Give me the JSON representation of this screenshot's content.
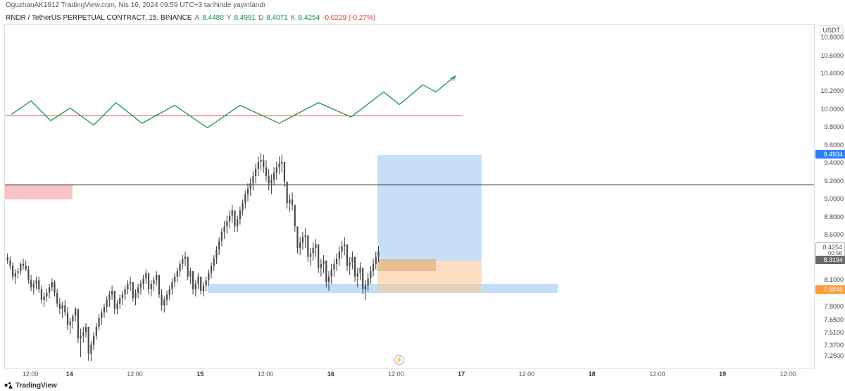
{
  "top_caption": "OguzhanAK1912 TradingView.com, Nis 16, 2024 09:59 UTC+3 tarihinde yayınlandı",
  "header": {
    "ticker": "RNDR / TetherUS PERPETUAL CONTRACT, 15, BINANCE",
    "o_label": "A",
    "o_val": "8.4480",
    "h_label": "Y",
    "h_val": "8.4991",
    "l_label": "D",
    "l_val": "8.4071",
    "c_label": "K",
    "c_val": "8.4254",
    "chg": "-0.0229 (-0.27%)"
  },
  "y_axis": {
    "unit": "USDT",
    "min": 7.1,
    "max": 10.95,
    "ticks": [
      7.25,
      7.37,
      7.51,
      7.65,
      7.8,
      8.1,
      8.6,
      8.8,
      9.0,
      9.2,
      9.4,
      9.6,
      9.8,
      10.0,
      10.2,
      10.4,
      10.6,
      10.8
    ],
    "tick_color": "#444444",
    "badges": [
      {
        "text": "8.4254",
        "sub": "00:56",
        "color": "#555555",
        "bg": "#ffffff",
        "border": "#bbbbbb",
        "price": 8.4254
      },
      {
        "text": "8.3194",
        "bg": "#6a6a6a",
        "color": "#ffffff",
        "price": 8.3194
      },
      {
        "text": "9.4934",
        "bg": "#2a7fff",
        "color": "#ffffff",
        "price": 9.4934
      },
      {
        "text": "7.9848",
        "bg": "#ff9a3a",
        "color": "#ffffff",
        "price": 7.9848
      }
    ]
  },
  "x_axis": {
    "t_min": 13.5,
    "t_max": 19.7,
    "ticks": [
      {
        "t": 13.7,
        "label": "12:00"
      },
      {
        "t": 14.0,
        "label": "14",
        "bold": true
      },
      {
        "t": 14.5,
        "label": "12:00"
      },
      {
        "t": 15.0,
        "label": "15",
        "bold": true
      },
      {
        "t": 15.5,
        "label": "12:00"
      },
      {
        "t": 16.0,
        "label": "16",
        "bold": true
      },
      {
        "t": 16.5,
        "label": "12:00"
      },
      {
        "t": 17.0,
        "label": "17",
        "bold": true
      },
      {
        "t": 17.5,
        "label": "12:00"
      },
      {
        "t": 18.0,
        "label": "18",
        "bold": true
      },
      {
        "t": 18.5,
        "label": "12:00"
      },
      {
        "t": 19.0,
        "label": "19",
        "bold": true
      },
      {
        "t": 19.5,
        "label": "12:00"
      }
    ]
  },
  "overlays": {
    "pink_rect": {
      "t0": 13.5,
      "t1": 14.02,
      "p0": 9.0,
      "p1": 9.17,
      "fill": "#f7b0b6",
      "opacity": 0.75
    },
    "long_box": {
      "t0": 16.35,
      "t1": 17.15,
      "p0": 8.32,
      "p1": 9.5,
      "fill": "#9cc2f0",
      "opacity": 0.55
    },
    "short_box": {
      "t0": 16.35,
      "t1": 17.15,
      "p0": 7.96,
      "p1": 8.32,
      "fill": "#f6c999",
      "opacity": 0.6
    },
    "orange_inner": {
      "t0": 16.35,
      "t1": 16.8,
      "p0": 8.2,
      "p1": 8.33,
      "fill": "#d8a26e",
      "opacity": 0.55
    },
    "blue_band": {
      "t0": 15.05,
      "t1": 17.73,
      "p0": 7.96,
      "p1": 8.06,
      "fill": "#a9cdf5",
      "opacity": 0.7
    },
    "black_hline": {
      "p": 9.17,
      "color": "#0a0a0a",
      "width": 1
    },
    "red_hline": {
      "p": 9.94,
      "t1": 17.0,
      "color": "#e04a4a",
      "width": 1
    }
  },
  "projection_curve": {
    "stroke": "#2c9a5b",
    "width": 1.4,
    "points": [
      [
        13.55,
        9.95
      ],
      [
        13.7,
        10.1
      ],
      [
        13.85,
        9.88
      ],
      [
        14.0,
        10.02
      ],
      [
        14.18,
        9.83
      ],
      [
        14.35,
        10.08
      ],
      [
        14.55,
        9.85
      ],
      [
        14.8,
        10.05
      ],
      [
        15.05,
        9.8
      ],
      [
        15.3,
        10.05
      ],
      [
        15.6,
        9.85
      ],
      [
        15.9,
        10.08
      ],
      [
        16.15,
        9.92
      ],
      [
        16.4,
        10.2
      ],
      [
        16.52,
        10.06
      ],
      [
        16.7,
        10.28
      ],
      [
        16.8,
        10.2
      ],
      [
        16.95,
        10.38
      ]
    ],
    "arrow_at": [
      16.95,
      10.38
    ]
  },
  "candles": {
    "up_color": "#4a4a4a",
    "down_color": "#4a4a4a",
    "wick_color": "#3a3a3a",
    "body_width": 2.2,
    "data": [
      [
        13.52,
        8.36,
        8.4,
        8.28,
        8.32
      ],
      [
        13.54,
        8.32,
        8.36,
        8.22,
        8.26
      ],
      [
        13.56,
        8.26,
        8.3,
        8.1,
        8.14
      ],
      [
        13.58,
        8.14,
        8.22,
        8.06,
        8.18
      ],
      [
        13.6,
        8.18,
        8.24,
        8.12,
        8.2
      ],
      [
        13.62,
        8.2,
        8.3,
        8.16,
        8.28
      ],
      [
        13.64,
        8.28,
        8.34,
        8.22,
        8.26
      ],
      [
        13.66,
        8.26,
        8.32,
        8.2,
        8.22
      ],
      [
        13.68,
        8.22,
        8.26,
        8.06,
        8.1
      ],
      [
        13.7,
        8.1,
        8.16,
        7.98,
        8.02
      ],
      [
        13.72,
        8.02,
        8.1,
        7.94,
        8.06
      ],
      [
        13.74,
        8.06,
        8.14,
        8.0,
        8.1
      ],
      [
        13.76,
        8.1,
        8.14,
        7.96,
        8.0
      ],
      [
        13.78,
        8.0,
        8.04,
        7.84,
        7.88
      ],
      [
        13.8,
        7.88,
        7.96,
        7.8,
        7.92
      ],
      [
        13.82,
        7.92,
        8.0,
        7.86,
        7.96
      ],
      [
        13.84,
        7.96,
        8.06,
        7.9,
        8.02
      ],
      [
        13.86,
        8.02,
        8.12,
        7.98,
        8.08
      ],
      [
        13.88,
        8.08,
        8.1,
        7.92,
        7.96
      ],
      [
        13.9,
        7.96,
        8.0,
        7.8,
        7.84
      ],
      [
        13.92,
        7.84,
        7.9,
        7.72,
        7.78
      ],
      [
        13.94,
        7.78,
        7.86,
        7.68,
        7.82
      ],
      [
        13.96,
        7.82,
        7.88,
        7.7,
        7.74
      ],
      [
        13.98,
        7.74,
        7.8,
        7.54,
        7.6
      ],
      [
        14.0,
        7.6,
        7.68,
        7.5,
        7.64
      ],
      [
        14.02,
        7.64,
        7.72,
        7.56,
        7.7
      ],
      [
        14.04,
        7.7,
        7.8,
        7.64,
        7.78
      ],
      [
        14.06,
        7.78,
        7.72,
        7.4,
        7.45
      ],
      [
        14.08,
        7.45,
        7.56,
        7.24,
        7.48
      ],
      [
        14.1,
        7.48,
        7.58,
        7.4,
        7.52
      ],
      [
        14.12,
        7.52,
        7.62,
        7.46,
        7.58
      ],
      [
        14.14,
        7.58,
        7.5,
        7.2,
        7.28
      ],
      [
        14.16,
        7.28,
        7.42,
        7.2,
        7.38
      ],
      [
        14.18,
        7.38,
        7.52,
        7.32,
        7.48
      ],
      [
        14.2,
        7.48,
        7.62,
        7.44,
        7.58
      ],
      [
        14.22,
        7.58,
        7.72,
        7.54,
        7.68
      ],
      [
        14.24,
        7.68,
        7.78,
        7.6,
        7.74
      ],
      [
        14.26,
        7.74,
        7.84,
        7.68,
        7.8
      ],
      [
        14.28,
        7.8,
        7.92,
        7.74,
        7.88
      ],
      [
        14.3,
        7.88,
        7.98,
        7.8,
        7.94
      ],
      [
        14.32,
        7.94,
        8.04,
        7.88,
        7.98
      ],
      [
        14.34,
        7.98,
        7.9,
        7.72,
        7.78
      ],
      [
        14.36,
        7.78,
        7.88,
        7.72,
        7.84
      ],
      [
        14.38,
        7.84,
        7.94,
        7.78,
        7.9
      ],
      [
        14.4,
        7.9,
        7.98,
        7.82,
        7.94
      ],
      [
        14.42,
        7.94,
        8.04,
        7.88,
        8.0
      ],
      [
        14.44,
        8.0,
        8.1,
        7.94,
        8.06
      ],
      [
        14.46,
        8.06,
        8.14,
        7.98,
        8.08
      ],
      [
        14.48,
        8.08,
        8.02,
        7.86,
        7.9
      ],
      [
        14.5,
        7.9,
        8.0,
        7.82,
        7.96
      ],
      [
        14.52,
        7.96,
        8.06,
        7.9,
        8.02
      ],
      [
        14.54,
        8.02,
        8.1,
        7.94,
        8.06
      ],
      [
        14.56,
        8.06,
        8.16,
        8.0,
        8.12
      ],
      [
        14.58,
        8.12,
        8.22,
        8.06,
        8.18
      ],
      [
        14.6,
        8.18,
        8.1,
        7.94,
        8.0
      ],
      [
        14.62,
        8.0,
        8.1,
        7.92,
        8.06
      ],
      [
        14.64,
        8.06,
        8.14,
        7.98,
        8.1
      ],
      [
        14.66,
        8.1,
        8.2,
        8.04,
        8.16
      ],
      [
        14.68,
        8.16,
        8.06,
        7.9,
        7.94
      ],
      [
        14.7,
        7.94,
        8.0,
        7.76,
        7.82
      ],
      [
        14.72,
        7.82,
        7.92,
        7.74,
        7.88
      ],
      [
        14.74,
        7.88,
        7.98,
        7.82,
        7.94
      ],
      [
        14.76,
        7.94,
        8.04,
        7.88,
        8.0
      ],
      [
        14.78,
        8.0,
        8.12,
        7.94,
        8.08
      ],
      [
        14.8,
        8.08,
        8.18,
        8.02,
        8.14
      ],
      [
        14.82,
        8.14,
        8.24,
        8.08,
        8.2
      ],
      [
        14.84,
        8.2,
        8.32,
        8.14,
        8.28
      ],
      [
        14.86,
        8.28,
        8.38,
        8.22,
        8.34
      ],
      [
        14.88,
        8.34,
        8.42,
        8.26,
        8.36
      ],
      [
        14.9,
        8.36,
        8.28,
        8.1,
        8.14
      ],
      [
        14.92,
        8.14,
        8.24,
        8.06,
        8.2
      ],
      [
        14.94,
        8.2,
        8.1,
        7.94,
        8.0
      ],
      [
        14.96,
        8.0,
        8.1,
        7.92,
        8.06
      ],
      [
        14.98,
        8.06,
        8.18,
        8.0,
        8.14
      ],
      [
        15.0,
        8.14,
        8.06,
        7.94,
        7.98
      ],
      [
        15.02,
        7.98,
        8.08,
        7.92,
        8.04
      ],
      [
        15.04,
        8.04,
        8.14,
        7.98,
        8.1
      ],
      [
        15.06,
        8.1,
        8.22,
        8.04,
        8.18
      ],
      [
        15.08,
        8.18,
        8.3,
        8.12,
        8.26
      ],
      [
        15.1,
        8.26,
        8.38,
        8.2,
        8.34
      ],
      [
        15.12,
        8.34,
        8.48,
        8.28,
        8.44
      ],
      [
        15.14,
        8.44,
        8.58,
        8.38,
        8.54
      ],
      [
        15.16,
        8.54,
        8.68,
        8.48,
        8.64
      ],
      [
        15.18,
        8.64,
        8.76,
        8.56,
        8.7
      ],
      [
        15.2,
        8.7,
        8.82,
        8.62,
        8.76
      ],
      [
        15.22,
        8.76,
        8.88,
        8.68,
        8.82
      ],
      [
        15.24,
        8.82,
        8.94,
        8.74,
        8.88
      ],
      [
        15.26,
        8.88,
        8.8,
        8.64,
        8.7
      ],
      [
        15.28,
        8.7,
        8.82,
        8.64,
        8.78
      ],
      [
        15.3,
        8.78,
        8.92,
        8.72,
        8.88
      ],
      [
        15.32,
        8.88,
        9.0,
        8.82,
        8.96
      ],
      [
        15.34,
        8.96,
        9.1,
        8.9,
        9.06
      ],
      [
        15.36,
        9.06,
        9.18,
        8.98,
        9.12
      ],
      [
        15.38,
        9.12,
        9.24,
        9.04,
        9.18
      ],
      [
        15.4,
        9.18,
        9.32,
        9.1,
        9.26
      ],
      [
        15.42,
        9.26,
        9.4,
        9.18,
        9.34
      ],
      [
        15.44,
        9.34,
        9.48,
        9.26,
        9.42
      ],
      [
        15.46,
        9.42,
        9.52,
        9.32,
        9.44
      ],
      [
        15.48,
        9.44,
        9.5,
        9.3,
        9.36
      ],
      [
        15.5,
        9.36,
        9.44,
        9.2,
        9.26
      ],
      [
        15.52,
        9.26,
        9.34,
        9.1,
        9.18
      ],
      [
        15.54,
        9.18,
        9.28,
        9.06,
        9.22
      ],
      [
        15.56,
        9.22,
        9.36,
        9.16,
        9.3
      ],
      [
        15.58,
        9.3,
        9.42,
        9.22,
        9.36
      ],
      [
        15.6,
        9.36,
        9.48,
        9.28,
        9.4
      ],
      [
        15.62,
        9.4,
        9.5,
        9.3,
        9.42
      ],
      [
        15.64,
        9.42,
        9.34,
        9.14,
        9.2
      ],
      [
        15.66,
        9.2,
        9.1,
        8.9,
        8.96
      ],
      [
        15.68,
        8.96,
        9.06,
        8.86,
        9.0
      ],
      [
        15.7,
        9.0,
        9.08,
        8.88,
        8.94
      ],
      [
        15.72,
        8.94,
        8.84,
        8.64,
        8.7
      ],
      [
        15.74,
        8.7,
        8.6,
        8.4,
        8.46
      ],
      [
        15.76,
        8.46,
        8.58,
        8.38,
        8.52
      ],
      [
        15.78,
        8.52,
        8.64,
        8.44,
        8.58
      ],
      [
        15.8,
        8.58,
        8.68,
        8.46,
        8.6
      ],
      [
        15.82,
        8.6,
        8.52,
        8.3,
        8.36
      ],
      [
        15.84,
        8.36,
        8.46,
        8.26,
        8.4
      ],
      [
        15.86,
        8.4,
        8.52,
        8.32,
        8.46
      ],
      [
        15.88,
        8.46,
        8.56,
        8.36,
        8.5
      ],
      [
        15.9,
        8.5,
        8.4,
        8.18,
        8.24
      ],
      [
        15.92,
        8.24,
        8.34,
        8.14,
        8.28
      ],
      [
        15.94,
        8.28,
        8.38,
        8.18,
        8.32
      ],
      [
        15.96,
        8.32,
        8.24,
        8.02,
        8.08
      ],
      [
        15.98,
        8.08,
        8.2,
        7.98,
        8.14
      ],
      [
        16.0,
        8.14,
        8.28,
        8.06,
        8.22
      ],
      [
        16.02,
        8.22,
        8.34,
        8.14,
        8.28
      ],
      [
        16.04,
        8.28,
        8.4,
        8.2,
        8.34
      ],
      [
        16.06,
        8.34,
        8.48,
        8.26,
        8.42
      ],
      [
        16.08,
        8.42,
        8.54,
        8.34,
        8.48
      ],
      [
        16.1,
        8.48,
        8.58,
        8.38,
        8.5
      ],
      [
        16.12,
        8.5,
        8.42,
        8.2,
        8.26
      ],
      [
        16.14,
        8.26,
        8.36,
        8.16,
        8.3
      ],
      [
        16.16,
        8.3,
        8.42,
        8.22,
        8.36
      ],
      [
        16.18,
        8.36,
        8.28,
        8.08,
        8.14
      ],
      [
        16.2,
        8.14,
        8.24,
        8.02,
        8.18
      ],
      [
        16.22,
        8.18,
        8.3,
        8.1,
        8.24
      ],
      [
        16.24,
        8.24,
        8.14,
        7.94,
        8.0
      ],
      [
        16.26,
        8.0,
        8.1,
        7.88,
        8.04
      ],
      [
        16.28,
        8.04,
        8.18,
        7.98,
        8.12
      ],
      [
        16.3,
        8.12,
        8.26,
        8.06,
        8.2
      ],
      [
        16.32,
        8.2,
        8.34,
        8.14,
        8.28
      ],
      [
        16.34,
        8.28,
        8.42,
        8.22,
        8.36
      ],
      [
        16.36,
        8.36,
        8.48,
        8.3,
        8.42
      ]
    ]
  },
  "footer": {
    "label": "TradingView"
  },
  "theme": {
    "bg": "#ffffff",
    "border": "#e0e0e0"
  }
}
